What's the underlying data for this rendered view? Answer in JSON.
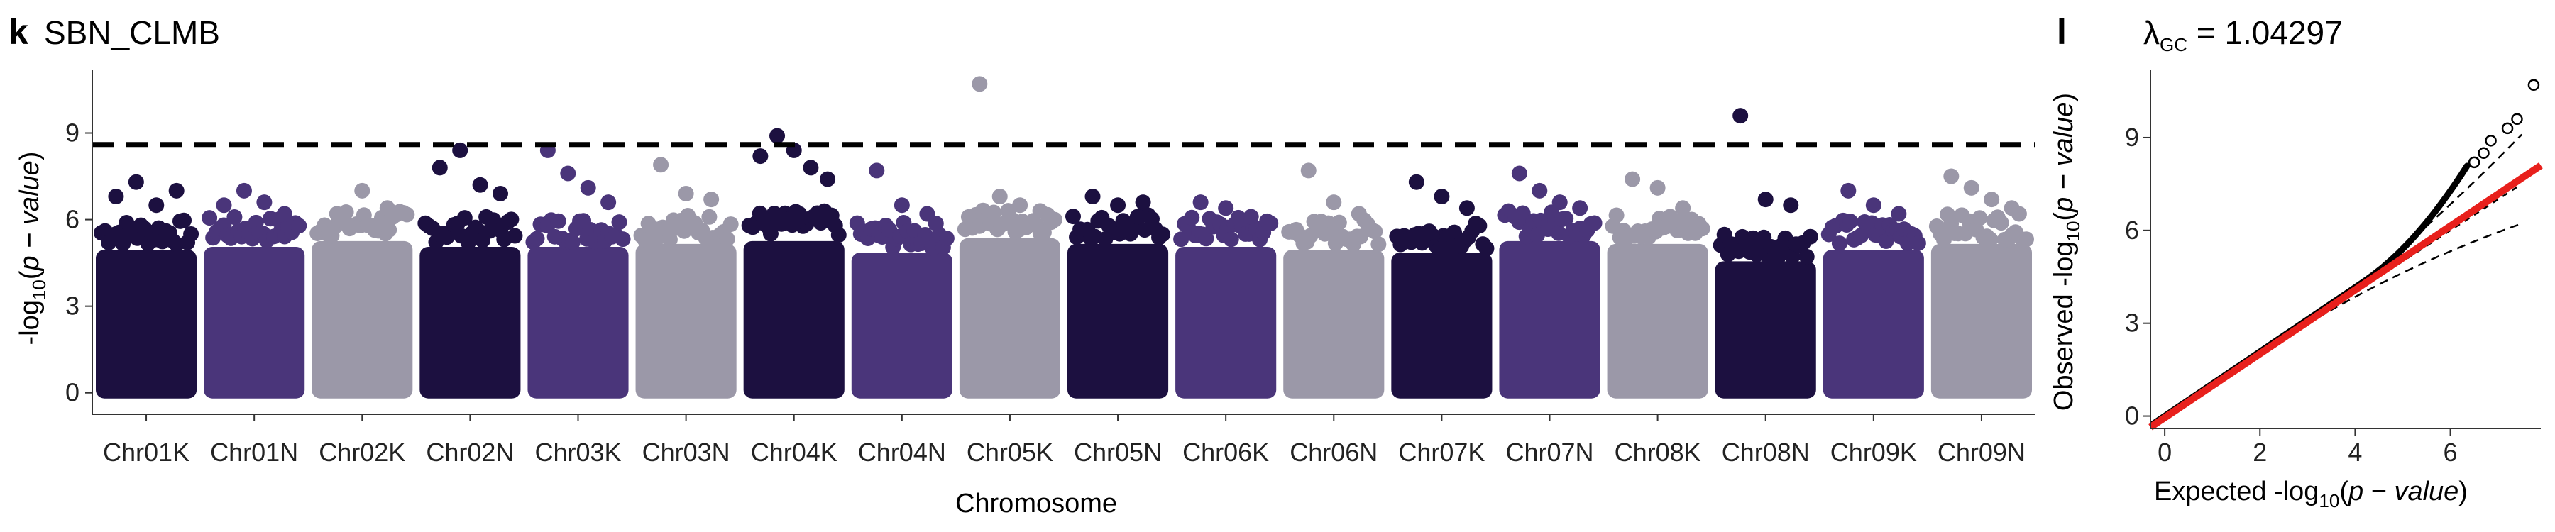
{
  "colors": {
    "dark": "#1c1040",
    "purple": "#4a357a",
    "grey": "#9b98a8",
    "threshold": "#000000",
    "qq_fit": "#e8201c",
    "qq_points": "#000000"
  },
  "chart_data": [
    {
      "panel": "k",
      "type": "scatter",
      "title": "SBN_CLMB",
      "xlabel": "Chromosome",
      "ylabel": "-log10(p − value)",
      "ylim": [
        -0.4,
        11.2
      ],
      "yticks": [
        0,
        3,
        6,
        9
      ],
      "threshold": 8.6,
      "grid": false,
      "categories": [
        "Chr01K",
        "Chr01N",
        "Chr02K",
        "Chr02N",
        "Chr03K",
        "Chr03N",
        "Chr04K",
        "Chr04N",
        "Chr05K",
        "Chr05N",
        "Chr06K",
        "Chr06N",
        "Chr07K",
        "Chr07N",
        "Chr08K",
        "Chr08N",
        "Chr09K",
        "Chr09N"
      ],
      "category_colors": [
        "dark",
        "purple",
        "grey",
        "dark",
        "purple",
        "grey",
        "dark",
        "purple",
        "grey",
        "dark",
        "purple",
        "grey",
        "dark",
        "purple",
        "grey",
        "dark",
        "purple",
        "grey"
      ],
      "band_top": [
        5.3,
        5.4,
        5.6,
        5.4,
        5.4,
        5.5,
        5.6,
        5.2,
        5.7,
        5.5,
        5.4,
        5.3,
        5.2,
        5.6,
        5.5,
        4.9,
        5.3,
        5.5
      ],
      "peak_points": [
        {
          "chr": "Chr01K",
          "y": [
            6.8,
            7.3,
            6.5,
            7.0
          ]
        },
        {
          "chr": "Chr01N",
          "y": [
            6.5,
            7.0,
            6.6,
            6.2
          ]
        },
        {
          "chr": "Chr02K",
          "y": [
            6.2,
            7.0,
            6.4
          ]
        },
        {
          "chr": "Chr02N",
          "y": [
            7.8,
            8.4,
            7.2,
            6.9
          ]
        },
        {
          "chr": "Chr03K",
          "y": [
            8.4,
            7.6,
            7.1,
            6.6
          ]
        },
        {
          "chr": "Chr03N",
          "y": [
            7.9,
            6.9,
            6.7
          ]
        },
        {
          "chr": "Chr04K",
          "y": [
            8.2,
            8.9,
            8.4,
            7.8,
            7.4
          ]
        },
        {
          "chr": "Chr04N",
          "y": [
            7.7,
            6.5,
            6.2
          ]
        },
        {
          "chr": "Chr05K",
          "y": [
            10.7,
            6.8,
            6.5,
            6.3
          ]
        },
        {
          "chr": "Chr05N",
          "y": [
            6.8,
            6.5,
            6.6
          ]
        },
        {
          "chr": "Chr06K",
          "y": [
            6.6,
            6.4,
            6.1
          ]
        },
        {
          "chr": "Chr06N",
          "y": [
            7.7,
            6.6,
            6.2
          ]
        },
        {
          "chr": "Chr07K",
          "y": [
            7.3,
            6.8,
            6.4
          ]
        },
        {
          "chr": "Chr07N",
          "y": [
            7.6,
            7.0,
            6.6,
            6.4
          ]
        },
        {
          "chr": "Chr08K",
          "y": [
            7.4,
            7.1,
            6.4
          ]
        },
        {
          "chr": "Chr08N",
          "y": [
            9.6,
            6.7,
            6.5
          ]
        },
        {
          "chr": "Chr09K",
          "y": [
            7.0,
            6.5,
            6.2
          ]
        },
        {
          "chr": "Chr09N",
          "y": [
            7.5,
            7.1,
            6.7,
            6.4
          ]
        }
      ]
    },
    {
      "panel": "l",
      "type": "scatter",
      "title": "λGC = 1.04297",
      "xlabel": "Expected -log10(p − value)",
      "ylabel": "Observed -log10(p − value)",
      "xlim": [
        -0.3,
        7.9
      ],
      "ylim": [
        -0.4,
        11.2
      ],
      "xticks": [
        0,
        2,
        4,
        6
      ],
      "yticks": [
        0,
        3,
        6,
        9
      ],
      "fit_line": {
        "x": [
          -0.3,
          7.9
        ],
        "y": [
          -0.36,
          8.1
        ]
      },
      "qq_points": [
        {
          "x": 6.5,
          "y": 8.2
        },
        {
          "x": 6.7,
          "y": 8.5
        },
        {
          "x": 6.85,
          "y": 8.9
        },
        {
          "x": 7.2,
          "y": 9.3
        },
        {
          "x": 7.4,
          "y": 9.6
        },
        {
          "x": 7.75,
          "y": 10.7
        }
      ],
      "lambda_gc": 1.04297
    }
  ]
}
